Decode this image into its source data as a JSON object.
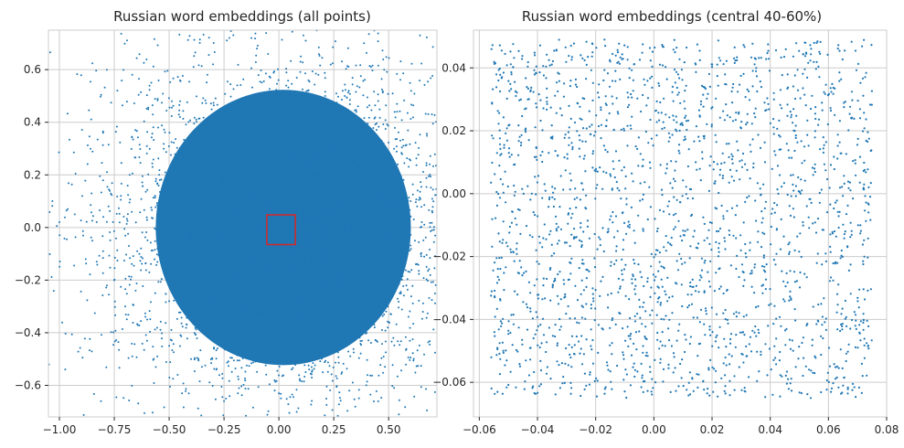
{
  "chart_data": [
    {
      "type": "scatter",
      "title": "Russian word embeddings (all points)",
      "xlabel": "",
      "ylabel": "",
      "xlim": [
        -1.05,
        0.72
      ],
      "ylim": [
        -0.72,
        0.75
      ],
      "xticks": [
        "−1.00",
        "−0.75",
        "−0.50",
        "−0.25",
        "0.00",
        "0.25",
        "0.50"
      ],
      "yticks": [
        "−0.6",
        "−0.4",
        "−0.2",
        "0.0",
        "0.2",
        "0.4",
        "0.6"
      ],
      "grid": true,
      "point_color": "#1f77b4",
      "highlight_box": {
        "x": [
          -0.055,
          0.075
        ],
        "y": [
          -0.065,
          0.048
        ],
        "color": "#d62728"
      },
      "points_description": "dense roughly elliptical cloud centered near (0.05, 0.0), x from about -1.0 to 0.63, y from about -0.66 to 0.69",
      "cloud": {
        "center": [
          0.05,
          0.0
        ],
        "extent_x": [
          -1.0,
          0.63
        ],
        "extent_y": [
          -0.66,
          0.69
        ],
        "sample_points": [
          [
            -1.0,
            0.02
          ],
          [
            -0.93,
            0.05
          ],
          [
            -0.88,
            -0.12
          ],
          [
            -0.85,
            -0.05
          ],
          [
            -0.8,
            0.04
          ],
          [
            -0.75,
            -0.2
          ],
          [
            -0.72,
            0.12
          ],
          [
            -0.7,
            -0.3
          ],
          [
            -0.68,
            0.2
          ],
          [
            -0.6,
            -0.35
          ],
          [
            -0.55,
            0.38
          ],
          [
            -0.5,
            -0.45
          ],
          [
            -0.45,
            0.48
          ],
          [
            -0.4,
            -0.5
          ],
          [
            -0.3,
            0.62
          ],
          [
            -0.25,
            -0.66
          ],
          [
            -0.1,
            0.68
          ],
          [
            0.0,
            -0.63
          ],
          [
            0.1,
            0.65
          ],
          [
            0.2,
            -0.55
          ],
          [
            0.3,
            0.5
          ],
          [
            0.4,
            -0.4
          ],
          [
            0.45,
            0.3
          ],
          [
            0.55,
            -0.25
          ],
          [
            0.6,
            0.1
          ],
          [
            0.62,
            -0.05
          ],
          [
            0.63,
            0.08
          ]
        ]
      }
    },
    {
      "type": "scatter",
      "title": "Russian word embeddings (central 40-60%)",
      "xlabel": "",
      "ylabel": "",
      "xlim": [
        -0.062,
        0.08
      ],
      "ylim": [
        -0.071,
        0.052
      ],
      "xticks": [
        "−0.06",
        "−0.04",
        "−0.02",
        "0.00",
        "0.02",
        "0.04",
        "0.06",
        "0.08"
      ],
      "yticks": [
        "−0.06",
        "−0.04",
        "−0.02",
        "0.00",
        "0.02",
        "0.04"
      ],
      "grid": true,
      "point_color": "#1f77b4",
      "points_description": "uniformly scattered points filling x from about -0.056 to 0.075 and y from about -0.065 to 0.049",
      "uniform_region": {
        "x": [
          -0.056,
          0.075
        ],
        "y": [
          -0.065,
          0.049
        ]
      }
    }
  ]
}
